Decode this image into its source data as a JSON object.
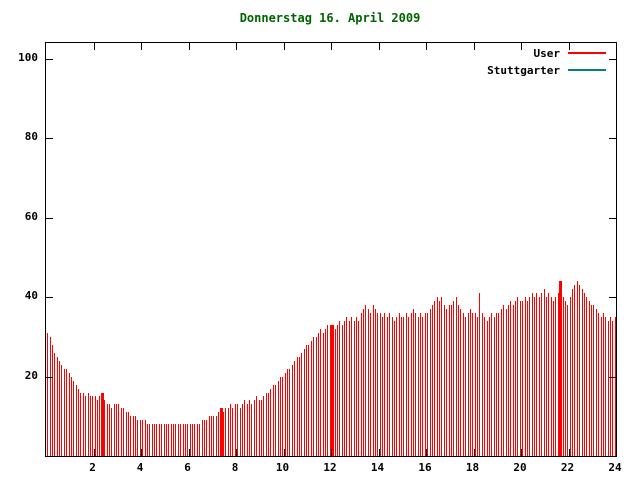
{
  "title": "Donnerstag 16. April 2009",
  "colors": {
    "title": "#006400",
    "axis": "#000000",
    "user_series": "#ff0000",
    "stuttgarter_series": "#008080",
    "background": "#ffffff"
  },
  "legend": {
    "items": [
      {
        "label": "User",
        "color": "#ff0000"
      },
      {
        "label": "Stuttgarter",
        "color": "#008080"
      }
    ]
  },
  "chart_data": {
    "type": "bar",
    "title": "Donnerstag 16. April 2009",
    "xlabel": "",
    "ylabel": "",
    "xlim": [
      0,
      24
    ],
    "ylim": [
      0,
      104
    ],
    "x_ticks": [
      2,
      4,
      6,
      8,
      10,
      12,
      14,
      16,
      18,
      20,
      22,
      24
    ],
    "y_ticks": [
      20,
      40,
      60,
      80,
      100
    ],
    "x_start": 0.05,
    "x_step": 0.1,
    "grid": false,
    "legend_position": "top-right",
    "highlight_indices": [
      23,
      73,
      120,
      216
    ],
    "series": [
      {
        "name": "User",
        "color": "#ff0000",
        "values": [
          31,
          30,
          28,
          26,
          25,
          24,
          23,
          22,
          22,
          21,
          20,
          19,
          18,
          17,
          16,
          16,
          15,
          16,
          15,
          15,
          15,
          14,
          15,
          16,
          14,
          13,
          13,
          12,
          13,
          13,
          13,
          12,
          12,
          11,
          11,
          10,
          10,
          10,
          9,
          9,
          9,
          9,
          8,
          8,
          8,
          8,
          8,
          8,
          8,
          8,
          8,
          8,
          8,
          8,
          8,
          8,
          8,
          8,
          8,
          8,
          8,
          8,
          8,
          8,
          8,
          9,
          9,
          9,
          10,
          10,
          10,
          10,
          11,
          12,
          11,
          12,
          12,
          13,
          12,
          13,
          13,
          12,
          13,
          14,
          13,
          14,
          13,
          14,
          15,
          14,
          14,
          15,
          16,
          16,
          17,
          18,
          18,
          19,
          20,
          20,
          21,
          22,
          22,
          23,
          24,
          25,
          25,
          26,
          27,
          28,
          28,
          29,
          30,
          30,
          31,
          32,
          31,
          32,
          33,
          33,
          33,
          32,
          33,
          34,
          33,
          34,
          35,
          34,
          35,
          34,
          35,
          34,
          36,
          37,
          38,
          37,
          36,
          38,
          37,
          36,
          36,
          35,
          36,
          35,
          36,
          35,
          34,
          35,
          36,
          35,
          35,
          36,
          35,
          36,
          37,
          36,
          35,
          36,
          35,
          36,
          36,
          37,
          38,
          39,
          40,
          39,
          40,
          38,
          37,
          38,
          38,
          39,
          40,
          38,
          37,
          36,
          35,
          36,
          37,
          36,
          36,
          35,
          41,
          36,
          35,
          34,
          35,
          36,
          35,
          36,
          36,
          37,
          38,
          37,
          38,
          39,
          38,
          39,
          40,
          39,
          39,
          40,
          39,
          40,
          41,
          40,
          41,
          40,
          41,
          42,
          40,
          41,
          40,
          39,
          40,
          41,
          44,
          40,
          39,
          38,
          40,
          42,
          43,
          44,
          43,
          42,
          41,
          40,
          39,
          38,
          38,
          37,
          36,
          35,
          36,
          35,
          34,
          35,
          34,
          35
        ]
      },
      {
        "name": "Stuttgarter",
        "color": "#008080",
        "values": []
      }
    ]
  }
}
